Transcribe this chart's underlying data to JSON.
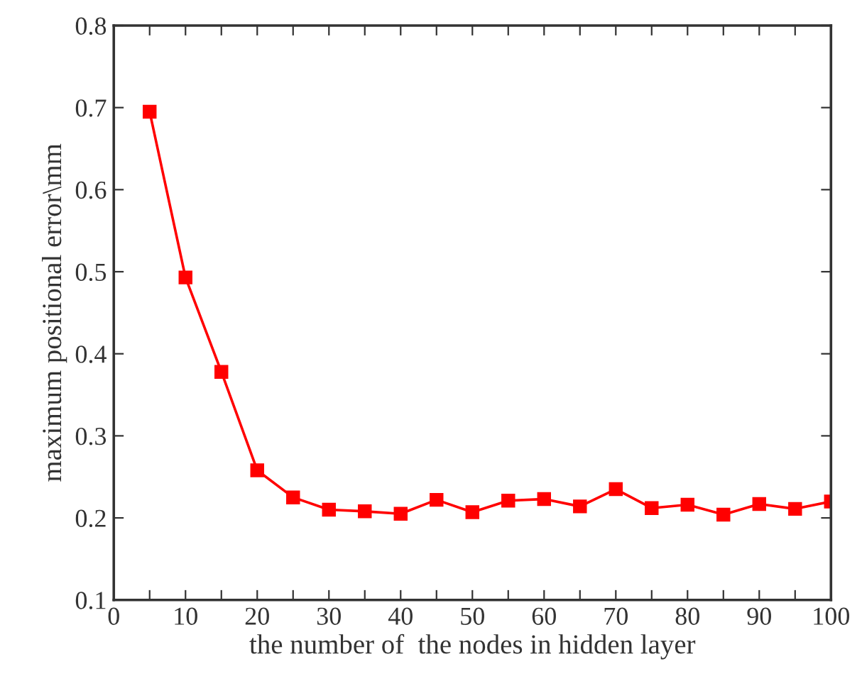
{
  "chart_data": {
    "type": "line",
    "xlabel": "the number of  the nodes in hidden layer",
    "ylabel": "maximum positional error\\mm",
    "x": [
      5,
      10,
      15,
      20,
      25,
      30,
      35,
      40,
      45,
      50,
      55,
      60,
      65,
      70,
      75,
      80,
      85,
      90,
      95,
      100
    ],
    "series": [
      {
        "color": "#ff0000",
        "values": [
          0.695,
          0.493,
          0.378,
          0.258,
          0.225,
          0.21,
          0.208,
          0.205,
          0.222,
          0.207,
          0.221,
          0.223,
          0.214,
          0.235,
          0.212,
          0.216,
          0.204,
          0.217,
          0.211,
          0.22
        ]
      }
    ],
    "marker": "square",
    "line_style": "solid",
    "grid": false,
    "legend": false,
    "xlim": [
      0,
      100
    ],
    "xticks": [
      0,
      {
        "value": 5,
        "label": null
      },
      10,
      {
        "value": 15,
        "label": null
      },
      20,
      {
        "value": 25,
        "label": null
      },
      30,
      {
        "value": 35,
        "label": null
      },
      40,
      {
        "value": 45,
        "label": null
      },
      50,
      {
        "value": 55,
        "label": null
      },
      60,
      {
        "value": 65,
        "label": null
      },
      70,
      {
        "value": 75,
        "label": null
      },
      80,
      {
        "value": 85,
        "label": null
      },
      90,
      {
        "value": 95,
        "label": null
      },
      100
    ],
    "ylim": [
      0.1,
      0.8
    ],
    "yticks": [
      0.1,
      0.2,
      0.3,
      0.4,
      0.5,
      0.6,
      0.7,
      0.8
    ]
  }
}
